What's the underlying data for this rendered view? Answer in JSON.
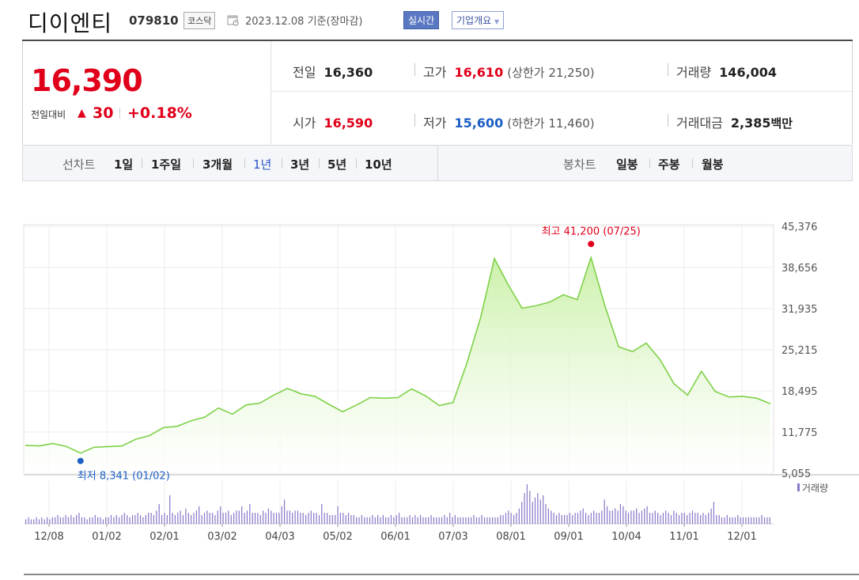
{
  "header": {
    "name": "디이엔티",
    "code": "079810",
    "market": "코스닥",
    "date": "2023.12.08 기준(장마감)",
    "realtime_btn": "실시간",
    "overview_btn": "기업개요"
  },
  "quote": {
    "price": "16,390",
    "change_label": "전일대비",
    "change_value": "30",
    "change_pct": "+0.18%",
    "prev_label": "전일",
    "prev": "16,360",
    "high_label": "고가",
    "high": "16,610",
    "upper_label": "(상한가 21,250)",
    "volume_label": "거래량",
    "volume": "146,004",
    "open_label": "시가",
    "open": "16,590",
    "low_label": "저가",
    "low": "15,600",
    "lower_label": "(하한가 11,460)",
    "amount_label": "거래대금",
    "amount": "2,385",
    "amount_unit": "백만"
  },
  "periods": {
    "line_label": "선차트",
    "line_items": [
      "1일",
      "1주일",
      "3개월",
      "1년",
      "3년",
      "5년",
      "10년"
    ],
    "active_index": 3,
    "candle_label": "봉차트",
    "candle_items": [
      "일봉",
      "주봉",
      "월봉"
    ]
  },
  "colors": {
    "up": "#e0001a",
    "down": "#1d5fc4",
    "line": "#7ed148",
    "area": "#c9f0a6",
    "volume": "#8a75c9"
  },
  "chart_data": {
    "type": "area",
    "yticks": [
      "45,376",
      "38,656",
      "31,935",
      "25,215",
      "18,495",
      "11,775",
      "5,055"
    ],
    "ytick_values": [
      45376,
      38656,
      31935,
      25215,
      18495,
      11775,
      5055
    ],
    "ylim": [
      5055,
      45376
    ],
    "xticks": [
      "12/08",
      "01/02",
      "02/01",
      "03/02",
      "04/03",
      "05/02",
      "06/01",
      "07/03",
      "08/01",
      "09/01",
      "10/04",
      "11/01",
      "12/01"
    ],
    "high_label": "최고 41,200 (07/25)",
    "high_value": 41200,
    "low_label": "최저 8,341 (01/02)",
    "low_value": 8341,
    "volume_legend": "거래량",
    "price_series": [
      [
        "12/08",
        9600
      ],
      [
        "12/15",
        9500
      ],
      [
        "12/22",
        9900
      ],
      [
        "12/29",
        9400
      ],
      [
        "01/02",
        8341
      ],
      [
        "01/09",
        9300
      ],
      [
        "01/16",
        9400
      ],
      [
        "01/25",
        9500
      ],
      [
        "02/01",
        10600
      ],
      [
        "02/08",
        11200
      ],
      [
        "02/15",
        12500
      ],
      [
        "02/22",
        12700
      ],
      [
        "03/02",
        13600
      ],
      [
        "03/09",
        14200
      ],
      [
        "03/16",
        15700
      ],
      [
        "03/23",
        14700
      ],
      [
        "03/30",
        16200
      ],
      [
        "04/03",
        16500
      ],
      [
        "04/10",
        17800
      ],
      [
        "04/17",
        18900
      ],
      [
        "04/24",
        18000
      ],
      [
        "05/02",
        17600
      ],
      [
        "05/09",
        16300
      ],
      [
        "05/16",
        15100
      ],
      [
        "05/23",
        16200
      ],
      [
        "05/30",
        17400
      ],
      [
        "06/01",
        17300
      ],
      [
        "06/08",
        17400
      ],
      [
        "06/15",
        18800
      ],
      [
        "06/22",
        17700
      ],
      [
        "06/29",
        16100
      ],
      [
        "07/03",
        16600
      ],
      [
        "07/10",
        23000
      ],
      [
        "07/17",
        30500
      ],
      [
        "07/25",
        40100
      ],
      [
        "08/01",
        35800
      ],
      [
        "08/08",
        32000
      ],
      [
        "08/16",
        32400
      ],
      [
        "08/23",
        33000
      ],
      [
        "08/30",
        34200
      ],
      [
        "09/06",
        33400
      ],
      [
        "09/13",
        40300
      ],
      [
        "09/20",
        32400
      ],
      [
        "09/27",
        25700
      ],
      [
        "10/04",
        24900
      ],
      [
        "10/11",
        26300
      ],
      [
        "10/18",
        23600
      ],
      [
        "10/25",
        19700
      ],
      [
        "11/01",
        17800
      ],
      [
        "11/08",
        21700
      ],
      [
        "11/15",
        18400
      ],
      [
        "11/22",
        17500
      ],
      [
        "11/29",
        17600
      ],
      [
        "12/01",
        17300
      ],
      [
        "12/08",
        16390
      ]
    ],
    "volume_series": [
      2,
      3,
      2,
      2,
      3,
      2,
      3,
      2,
      3,
      2,
      3,
      3,
      4,
      3,
      3,
      4,
      3,
      4,
      3,
      4,
      5,
      3,
      3,
      2,
      3,
      3,
      4,
      3,
      3,
      2,
      3,
      3,
      4,
      3,
      4,
      3,
      4,
      5,
      4,
      3,
      4,
      4,
      5,
      4,
      3,
      4,
      5,
      5,
      4,
      6,
      9,
      4,
      5,
      4,
      13,
      5,
      4,
      5,
      6,
      4,
      7,
      5,
      4,
      5,
      6,
      8,
      4,
      5,
      6,
      5,
      5,
      4,
      6,
      8,
      5,
      5,
      6,
      4,
      5,
      6,
      6,
      8,
      5,
      6,
      9,
      5,
      5,
      5,
      4,
      6,
      5,
      7,
      6,
      5,
      5,
      5,
      8,
      11,
      6,
      6,
      5,
      6,
      6,
      5,
      5,
      4,
      5,
      6,
      5,
      5,
      4,
      9,
      5,
      5,
      4,
      4,
      4,
      8,
      5,
      5,
      4,
      5,
      4,
      4,
      3,
      3,
      4,
      3,
      3,
      3,
      4,
      3,
      4,
      3,
      4,
      3,
      3,
      4,
      3,
      4,
      5,
      3,
      3,
      3,
      4,
      3,
      4,
      3,
      4,
      3,
      3,
      3,
      4,
      3,
      3,
      3,
      3,
      4,
      3,
      5,
      3,
      4,
      3,
      3,
      3,
      3,
      3,
      3,
      4,
      3,
      3,
      4,
      3,
      3,
      3,
      3,
      3,
      3,
      4,
      4,
      5,
      6,
      5,
      4,
      5,
      7,
      10,
      14,
      18,
      15,
      10,
      12,
      14,
      11,
      13,
      9,
      7,
      6,
      5,
      4,
      5,
      4,
      4,
      4,
      5,
      4,
      5,
      5,
      6,
      7,
      5,
      4,
      5,
      6,
      5,
      5,
      6,
      11,
      8,
      6,
      6,
      7,
      6,
      9,
      8,
      6,
      5,
      6,
      6,
      7,
      5,
      6,
      7,
      8,
      5,
      5,
      6,
      5,
      4,
      5,
      6,
      5,
      4,
      6,
      5,
      4,
      5,
      5,
      4,
      5,
      6,
      5,
      5,
      4,
      5,
      4,
      5,
      7,
      10,
      4,
      4,
      3,
      3,
      4,
      3,
      3,
      3,
      4,
      3,
      3,
      3,
      3,
      3,
      3,
      3,
      3,
      4,
      3,
      3,
      3
    ]
  }
}
